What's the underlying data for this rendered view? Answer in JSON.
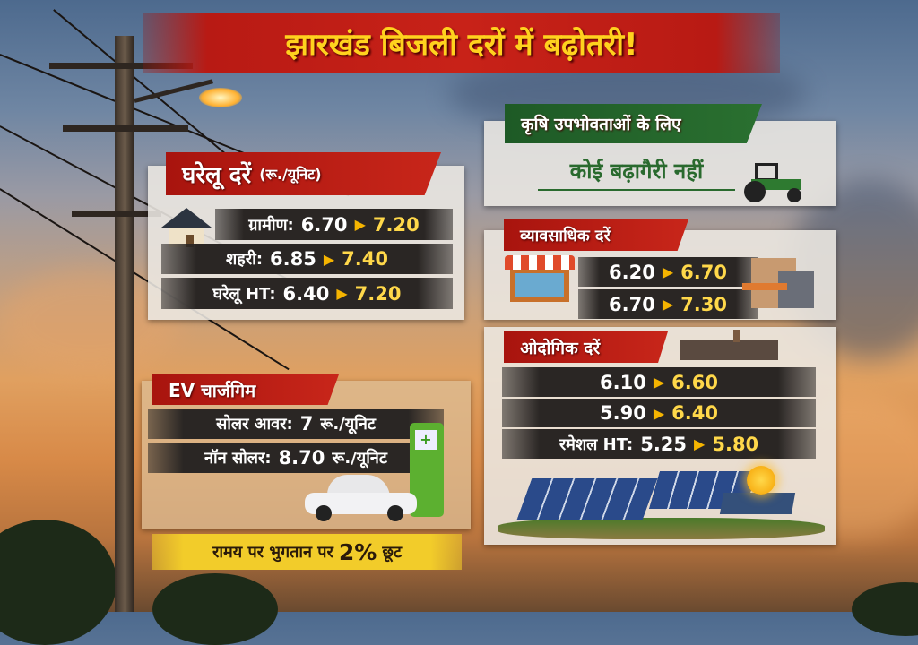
{
  "title": "झारखंड बिजली दरों में बढ़ोतरी!",
  "domestic": {
    "heading": "घरेलू दरें",
    "unit": "(रू./यूनिट)",
    "rows": [
      {
        "label": "ग्रामीण:",
        "old": "6.70",
        "new": "7.20"
      },
      {
        "label": "शहरी:",
        "old": "6.85",
        "new": "7.40"
      },
      {
        "label": "घरेलू HT:",
        "old": "6.40",
        "new": "7.20"
      }
    ]
  },
  "ev": {
    "heading": "EV चार्जगिम",
    "rows": [
      {
        "label": "सोलर आवर:",
        "value": "7",
        "unit": "रू./यूनिट"
      },
      {
        "label": "नॉन सोलर:",
        "value": "8.70",
        "unit": "रू./यूनिट"
      }
    ]
  },
  "discount": {
    "text": "रामय पर भुगतान पर",
    "value": "2%",
    "suffix": "छूट"
  },
  "agriculture": {
    "heading": "कृषि उपभोवताओं के लिए",
    "text": "कोई बढ़ागैरी नहीं"
  },
  "commercial": {
    "heading": "व्यावसाधिक दरें",
    "rows": [
      {
        "old": "6.20",
        "new": "6.70"
      },
      {
        "old": "6.70",
        "new": "7.30"
      }
    ]
  },
  "industrial": {
    "heading": "ओदोगिक दरें",
    "rows": [
      {
        "label": "",
        "old": "6.10",
        "new": "6.60"
      },
      {
        "label": "",
        "old": "5.90",
        "new": "6.40"
      },
      {
        "label": "रमेशल HT:",
        "old": "5.25",
        "new": "5.80"
      }
    ]
  },
  "colors": {
    "red": "#c8261a",
    "yellow": "#ffd21e",
    "green": "#2a6a2e",
    "dark": "#2a2624"
  },
  "icons": [
    "house-icon",
    "store-icon",
    "building-icon",
    "tractor-icon",
    "factory-icon",
    "ev-charger-icon",
    "car-icon",
    "solar-panel-icon",
    "sun-icon",
    "street-lamp-icon",
    "utility-pole-icon"
  ]
}
